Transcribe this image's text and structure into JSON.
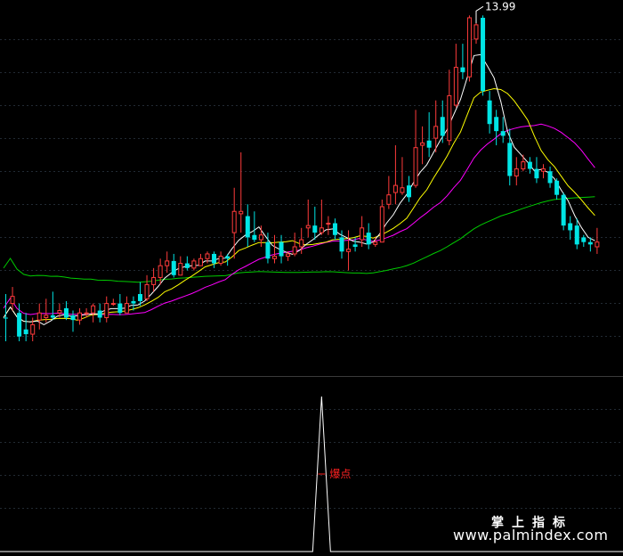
{
  "chart_data": [
    {
      "type": "candlestick",
      "panel": "price",
      "peak_label": "13.99",
      "grid": true,
      "colors": {
        "up": "#ff3b3b",
        "down": "#00e5e5",
        "ma5": "#ffffff",
        "ma10": "#ffff00",
        "ma20": "#ff00ff",
        "ma60": "#00cc00"
      },
      "ohlc": [
        [
          1.0,
          1.0,
          2.0,
          0.0,
          "d"
        ],
        [
          1.6,
          1.9,
          2.3,
          1.3,
          "u"
        ],
        [
          1.2,
          0.2,
          1.6,
          0.0,
          "d"
        ],
        [
          0.5,
          0.3,
          1.2,
          0.0,
          "d"
        ],
        [
          0.3,
          0.7,
          1.0,
          0.0,
          "u"
        ],
        [
          0.9,
          1.2,
          1.6,
          0.5,
          "u"
        ],
        [
          1.0,
          1.1,
          1.8,
          0.8,
          "u"
        ],
        [
          1.1,
          1.0,
          2.1,
          0.9,
          "d"
        ],
        [
          1.2,
          1.3,
          1.6,
          1.0,
          "u"
        ],
        [
          1.4,
          1.0,
          1.7,
          0.9,
          "d"
        ],
        [
          1.1,
          0.9,
          1.3,
          0.4,
          "d"
        ],
        [
          0.9,
          1.2,
          1.4,
          0.7,
          "u"
        ],
        [
          1.2,
          1.2,
          1.4,
          1.0,
          "u"
        ],
        [
          1.2,
          1.5,
          1.6,
          0.8,
          "u"
        ],
        [
          1.3,
          1.0,
          1.6,
          0.8,
          "d"
        ],
        [
          1.0,
          1.6,
          1.9,
          0.8,
          "u"
        ],
        [
          1.6,
          1.6,
          1.8,
          1.5,
          "u"
        ],
        [
          1.6,
          1.2,
          2.0,
          1.1,
          "d"
        ],
        [
          1.2,
          1.6,
          1.9,
          1.2,
          "u"
        ],
        [
          1.7,
          1.6,
          1.9,
          1.3,
          "d"
        ],
        [
          2.0,
          1.7,
          2.5,
          1.5,
          "d"
        ],
        [
          1.8,
          2.4,
          2.8,
          1.7,
          "u"
        ],
        [
          2.4,
          2.7,
          3.1,
          2.1,
          "u"
        ],
        [
          2.7,
          3.2,
          3.5,
          2.4,
          "u"
        ],
        [
          3.2,
          3.4,
          3.8,
          2.9,
          "u"
        ],
        [
          3.4,
          2.8,
          3.7,
          2.7,
          "d"
        ],
        [
          2.8,
          3.3,
          3.6,
          2.8,
          "u"
        ],
        [
          3.3,
          3.1,
          3.6,
          3.0,
          "d"
        ],
        [
          3.1,
          3.4,
          3.5,
          3.0,
          "u"
        ],
        [
          3.2,
          3.5,
          3.7,
          3.2,
          "u"
        ],
        [
          3.5,
          3.7,
          3.8,
          3.3,
          "u"
        ],
        [
          3.7,
          3.3,
          3.8,
          3.1,
          "d"
        ],
        [
          3.3,
          3.6,
          3.8,
          3.2,
          "u"
        ],
        [
          3.6,
          3.5,
          3.7,
          3.2,
          "d"
        ],
        [
          4.6,
          5.5,
          6.5,
          3.5,
          "u"
        ],
        [
          5.4,
          5.5,
          8.0,
          4.6,
          "u"
        ],
        [
          5.3,
          4.4,
          5.8,
          4.0,
          "d"
        ],
        [
          4.5,
          4.3,
          5.5,
          4.2,
          "d"
        ],
        [
          4.3,
          4.5,
          4.9,
          4.0,
          "u"
        ],
        [
          4.2,
          3.5,
          4.6,
          3.3,
          "d"
        ],
        [
          3.5,
          3.6,
          4.5,
          3.3,
          "u"
        ],
        [
          4.2,
          3.6,
          4.5,
          3.3,
          "d"
        ],
        [
          3.6,
          3.7,
          3.8,
          3.4,
          "u"
        ],
        [
          3.7,
          4.0,
          4.6,
          3.6,
          "u"
        ],
        [
          4.0,
          4.3,
          4.8,
          3.7,
          "u"
        ],
        [
          4.8,
          4.9,
          6.0,
          4.4,
          "u"
        ],
        [
          4.9,
          4.6,
          5.7,
          4.3,
          "d"
        ],
        [
          4.6,
          4.8,
          6.0,
          4.5,
          "u"
        ],
        [
          5.0,
          5.0,
          5.3,
          4.5,
          "u"
        ],
        [
          5.0,
          4.5,
          5.2,
          4.3,
          "d"
        ],
        [
          4.4,
          3.8,
          4.7,
          3.5,
          "d"
        ],
        [
          3.8,
          3.9,
          4.7,
          3.0,
          "u"
        ],
        [
          4.1,
          4.0,
          4.4,
          3.8,
          "d"
        ],
        [
          4.3,
          4.8,
          5.3,
          4.0,
          "u"
        ],
        [
          4.6,
          4.1,
          5.0,
          3.9,
          "d"
        ],
        [
          4.1,
          4.2,
          4.4,
          4.0,
          "u"
        ],
        [
          4.2,
          5.7,
          6.0,
          4.2,
          "u"
        ],
        [
          5.8,
          6.2,
          7.0,
          5.6,
          "u"
        ],
        [
          6.3,
          6.6,
          8.3,
          5.8,
          "u"
        ],
        [
          6.3,
          6.5,
          7.8,
          6.2,
          "u"
        ],
        [
          6.6,
          6.1,
          7.0,
          5.9,
          "d"
        ],
        [
          6.6,
          8.2,
          9.8,
          6.5,
          "u"
        ],
        [
          8.3,
          8.4,
          9.1,
          7.5,
          "u"
        ],
        [
          8.5,
          8.2,
          9.7,
          7.8,
          "d"
        ],
        [
          8.6,
          9.1,
          10.2,
          8.0,
          "u"
        ],
        [
          9.5,
          8.7,
          10.2,
          8.4,
          "d"
        ],
        [
          8.5,
          10.4,
          11.5,
          8.3,
          "u"
        ],
        [
          10.0,
          11.6,
          12.6,
          9.9,
          "u"
        ],
        [
          11.6,
          11.4,
          12.6,
          11.1,
          "d"
        ],
        [
          11.2,
          13.7,
          13.8,
          11.0,
          "u"
        ],
        [
          12.8,
          13.4,
          13.99,
          12.6,
          "u"
        ],
        [
          13.7,
          10.6,
          13.8,
          10.4,
          "d"
        ],
        [
          10.2,
          9.2,
          10.6,
          8.8,
          "d"
        ],
        [
          9.5,
          8.9,
          9.8,
          8.3,
          "d"
        ],
        [
          8.9,
          8.7,
          9.5,
          8.4,
          "d"
        ],
        [
          8.4,
          7.0,
          9.0,
          6.6,
          "d"
        ],
        [
          7.0,
          7.3,
          7.8,
          6.6,
          "u"
        ],
        [
          7.3,
          7.6,
          7.9,
          7.2,
          "u"
        ],
        [
          7.6,
          7.3,
          7.8,
          7.1,
          "d"
        ],
        [
          7.3,
          6.9,
          7.8,
          6.7,
          "d"
        ],
        [
          7.2,
          7.3,
          7.5,
          6.9,
          "u"
        ],
        [
          7.2,
          6.7,
          7.4,
          6.5,
          "d"
        ],
        [
          6.8,
          6.2,
          6.9,
          6.0,
          "d"
        ],
        [
          6.2,
          4.9,
          6.3,
          4.7,
          "d"
        ],
        [
          5.0,
          4.7,
          5.3,
          4.3,
          "d"
        ],
        [
          4.9,
          4.1,
          5.2,
          3.9,
          "d"
        ],
        [
          4.4,
          4.2,
          4.5,
          4.0,
          "d"
        ],
        [
          4.2,
          4.1,
          4.4,
          3.8,
          "d"
        ],
        [
          4.0,
          4.2,
          4.8,
          3.7,
          "u"
        ]
      ]
    },
    {
      "type": "line",
      "panel": "indicator",
      "signal_label": "爆点",
      "signal_index": 47,
      "values_note": "",
      "spike_height": 1.0,
      "color": "#ffffff",
      "label_color": "#ff2020"
    }
  ],
  "watermark": {
    "cn": "掌上指标",
    "url": "www.palmindex.com"
  }
}
